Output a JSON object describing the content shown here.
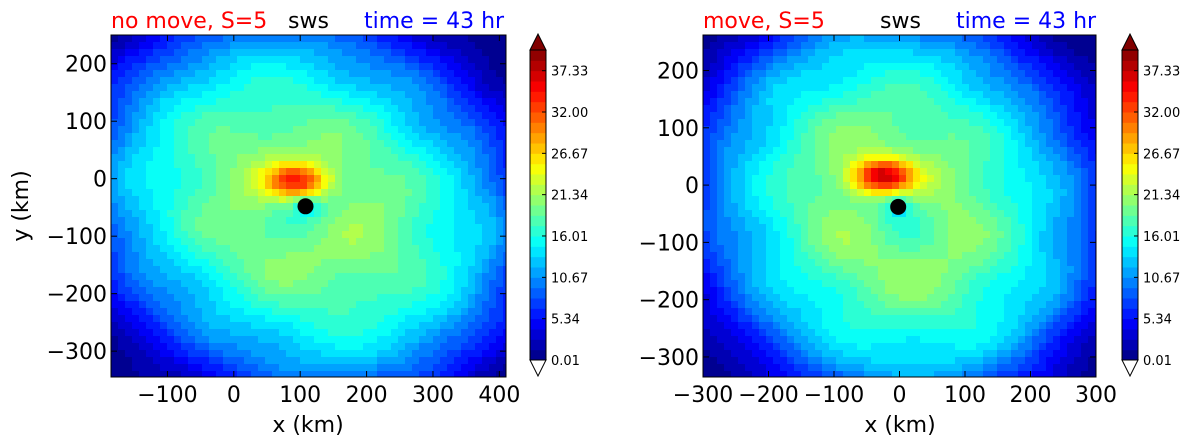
{
  "chart_data": [
    {
      "type": "heatmap",
      "plot": "filled-contour",
      "title_left": "no move, S=5",
      "title_center": "sws",
      "title_right": "time = 43 hr",
      "title_colors": {
        "left": "#ff0000",
        "center": "#000000",
        "right": "#0000ff"
      },
      "xlabel": "x (km)",
      "ylabel": "y (km)",
      "xlim": [
        -185,
        410
      ],
      "ylim": [
        -345,
        250
      ],
      "xticks": [
        -100,
        0,
        100,
        200,
        300,
        400
      ],
      "xtick_labels": [
        "−100",
        "0",
        "100",
        "200",
        "300",
        "400"
      ],
      "yticks": [
        -300,
        -200,
        -100,
        0,
        100,
        200
      ],
      "ytick_labels": [
        "−300",
        "−200",
        "−100",
        "0",
        "100",
        "200"
      ],
      "center_marker": {
        "x": 108,
        "y": -48
      },
      "max_region": {
        "x": 95,
        "y": -5,
        "value": 33
      },
      "colormap": "jet",
      "colorbar": {
        "min": 0.01,
        "max": 40.0,
        "extend": "both",
        "tick_values": [
          0.01,
          5.34,
          10.67,
          16.01,
          21.34,
          26.67,
          32.0,
          37.33
        ],
        "tick_labels": [
          "0.01",
          "5.34",
          "10.67",
          "16.01",
          "21.34",
          "26.67",
          "32.00",
          "37.33"
        ]
      },
      "grid": false
    },
    {
      "type": "heatmap",
      "plot": "filled-contour",
      "title_left": "move, S=5",
      "title_center": "sws",
      "title_right": "time = 43 hr",
      "title_colors": {
        "left": "#ff0000",
        "center": "#000000",
        "right": "#0000ff"
      },
      "xlabel": "x (km)",
      "ylabel": "",
      "xlim": [
        -300,
        300
      ],
      "ylim": [
        -335,
        262
      ],
      "xticks": [
        -300,
        -200,
        -100,
        0,
        100,
        200,
        300
      ],
      "xtick_labels": [
        "−300",
        "−200",
        "−100",
        "0",
        "100",
        "200",
        "300"
      ],
      "yticks": [
        -300,
        -200,
        -100,
        0,
        100,
        200
      ],
      "ytick_labels": [
        "−300",
        "−200",
        "−100",
        "0",
        "100",
        "200"
      ],
      "center_marker": {
        "x": -2,
        "y": -38
      },
      "max_region": {
        "x": -25,
        "y": 15,
        "value": 36
      },
      "colormap": "jet",
      "colorbar": {
        "min": 0.01,
        "max": 40.0,
        "extend": "both",
        "tick_values": [
          0.01,
          5.34,
          10.67,
          16.01,
          21.34,
          26.67,
          32.0,
          37.33
        ],
        "tick_labels": [
          "0.01",
          "5.34",
          "10.67",
          "16.01",
          "21.34",
          "26.67",
          "32.00",
          "37.33"
        ]
      },
      "grid": false
    }
  ]
}
